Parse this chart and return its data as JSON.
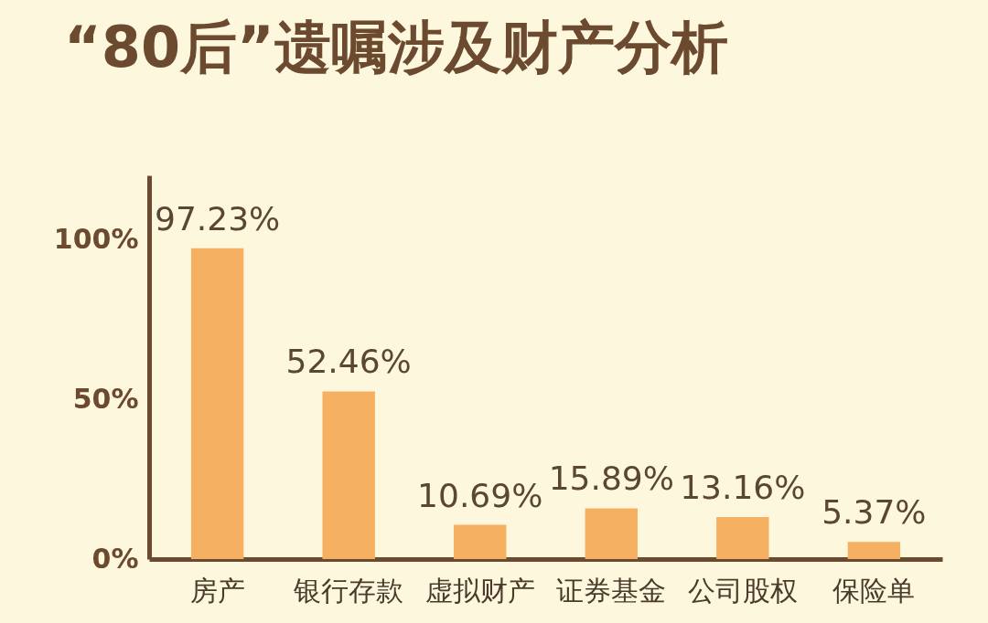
{
  "chart_data": {
    "type": "bar",
    "title": "“80后”遗嘱涉及财产分析",
    "categories": [
      "房产",
      "银行存款",
      "虚拟财产",
      "证券基金",
      "公司股权",
      "保险单"
    ],
    "values": [
      97.23,
      52.46,
      10.69,
      15.89,
      13.16,
      5.37
    ],
    "value_labels": [
      "97.23%",
      "52.46%",
      "10.69%",
      "15.89%",
      "13.16%",
      "5.37%"
    ],
    "color": "#f5b062",
    "ylim": [
      0,
      120
    ],
    "yticks": [
      {
        "value": 0,
        "label": "0%"
      },
      {
        "value": 50,
        "label": "50%"
      },
      {
        "value": 100,
        "label": "100%"
      }
    ]
  }
}
